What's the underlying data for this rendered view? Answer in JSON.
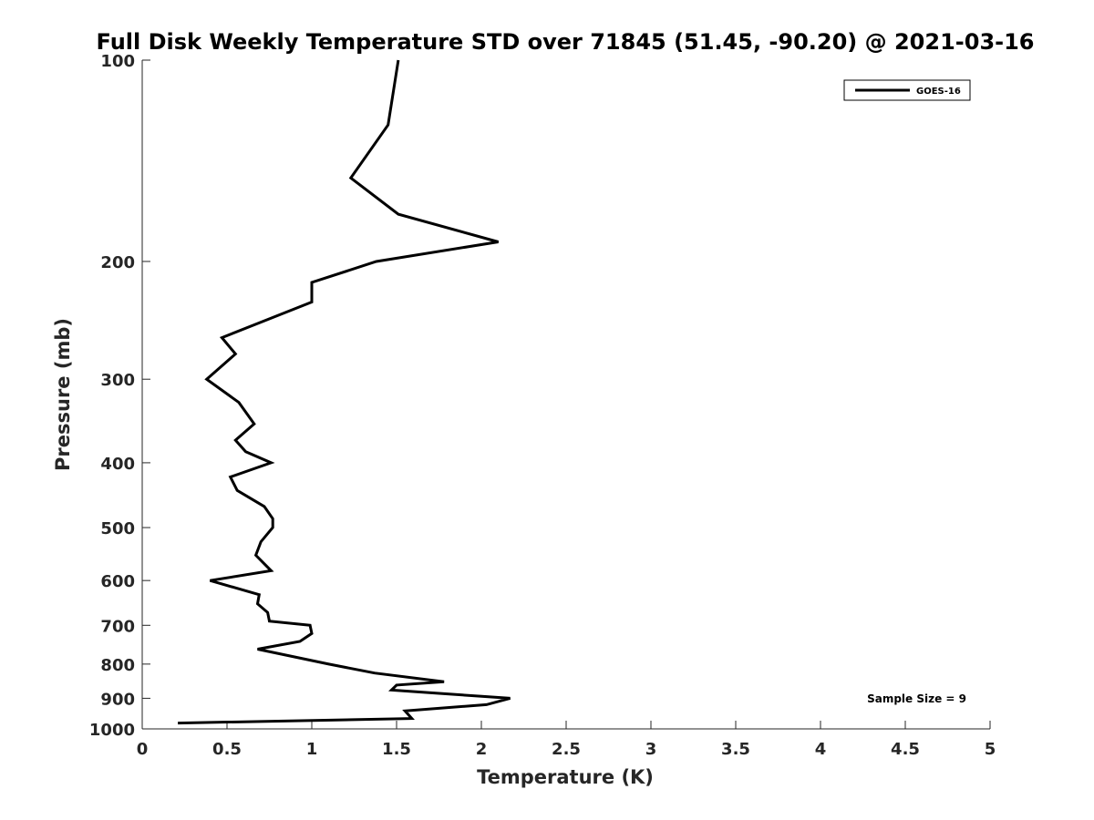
{
  "chart_data": {
    "type": "line",
    "title": "Full Disk Weekly Temperature STD over 71845 (51.45, -90.20) @ 2021-03-16",
    "xlabel": "Temperature (K)",
    "ylabel": "Pressure (mb)",
    "xlim": [
      0,
      5
    ],
    "ylim": [
      100,
      1000
    ],
    "y_scale": "log",
    "y_reversed": true,
    "x_ticks": [
      "0",
      "0.5",
      "1",
      "1.5",
      "2",
      "2.5",
      "3",
      "3.5",
      "4",
      "4.5",
      "5"
    ],
    "y_ticks": [
      "100",
      "200",
      "300",
      "400",
      "500",
      "600",
      "700",
      "800",
      "900",
      "1000"
    ],
    "grid": false,
    "legend_position": "top-right",
    "series": [
      {
        "name": "GOES-16",
        "color": "#000000",
        "points": [
          [
            1.51,
            100
          ],
          [
            1.45,
            125
          ],
          [
            1.23,
            150
          ],
          [
            1.51,
            170
          ],
          [
            2.1,
            187
          ],
          [
            1.38,
            200
          ],
          [
            1.0,
            215
          ],
          [
            1.0,
            230
          ],
          [
            0.47,
            260
          ],
          [
            0.55,
            275
          ],
          [
            0.38,
            300
          ],
          [
            0.57,
            325
          ],
          [
            0.66,
            350
          ],
          [
            0.55,
            370
          ],
          [
            0.61,
            385
          ],
          [
            0.76,
            400
          ],
          [
            0.52,
            420
          ],
          [
            0.56,
            440
          ],
          [
            0.72,
            465
          ],
          [
            0.77,
            485
          ],
          [
            0.77,
            500
          ],
          [
            0.7,
            525
          ],
          [
            0.67,
            550
          ],
          [
            0.76,
            580
          ],
          [
            0.4,
            600
          ],
          [
            0.69,
            630
          ],
          [
            0.68,
            650
          ],
          [
            0.74,
            670
          ],
          [
            0.75,
            690
          ],
          [
            0.99,
            700
          ],
          [
            1.0,
            720
          ],
          [
            0.93,
            740
          ],
          [
            0.68,
            760
          ],
          [
            1.1,
            800
          ],
          [
            1.37,
            825
          ],
          [
            1.78,
            850
          ],
          [
            1.5,
            860
          ],
          [
            1.47,
            875
          ],
          [
            2.17,
            900
          ],
          [
            2.03,
            920
          ],
          [
            1.55,
            940
          ],
          [
            1.59,
            965
          ],
          [
            0.21,
            980
          ]
        ]
      }
    ],
    "annotation": "Sample Size = 9"
  }
}
